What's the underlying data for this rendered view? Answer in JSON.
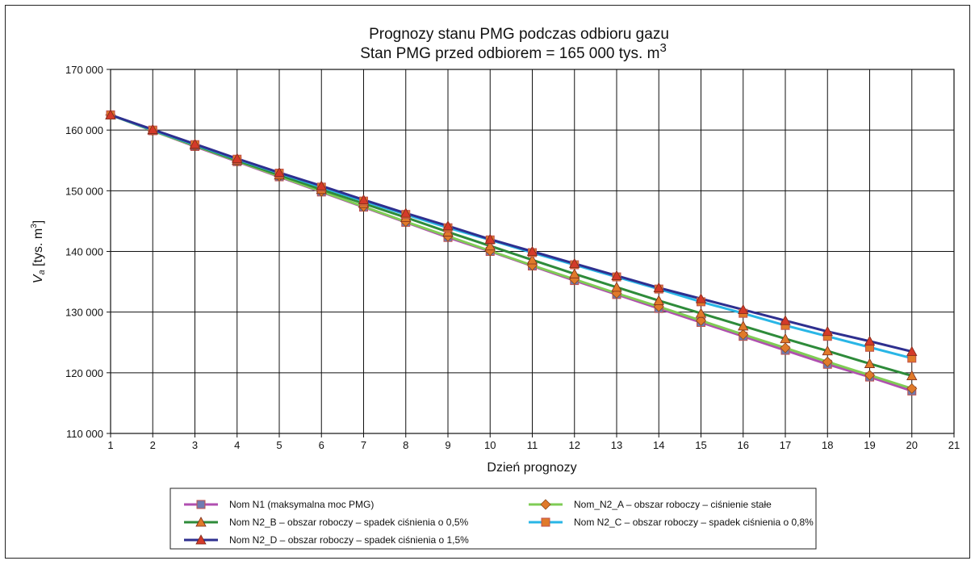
{
  "chart_data": {
    "type": "line",
    "title_line1": "Prognozy stanu PMG podczas odbioru gazu",
    "title_line2": "Stan PMG przed odbiorem = 165 000 tys. m",
    "title_sup": "3",
    "xlabel": "Dzień prognozy",
    "ylabel_main": "V",
    "ylabel_sub": "a",
    "ylabel_rest": " [tys. m",
    "ylabel_sup": "3",
    "ylabel_close": "]",
    "xlim": [
      1,
      21
    ],
    "ylim": [
      110000,
      170000
    ],
    "x_ticks": [
      "1",
      "2",
      "3",
      "4",
      "5",
      "6",
      "7",
      "8",
      "9",
      "10",
      "11",
      "12",
      "13",
      "14",
      "15",
      "16",
      "17",
      "18",
      "19",
      "20",
      "21"
    ],
    "y_ticks": [
      "110 000",
      "120 000",
      "130 000",
      "140 000",
      "150 000",
      "160 000",
      "170 000"
    ],
    "y_tick_values": [
      110000,
      120000,
      130000,
      140000,
      150000,
      160000,
      170000
    ],
    "grid": true,
    "legend_position": "bottom",
    "x": [
      1,
      2,
      3,
      4,
      5,
      6,
      7,
      8,
      9,
      10,
      11,
      12,
      13,
      14,
      15,
      16,
      17,
      18,
      19,
      20
    ],
    "series": [
      {
        "name": "Nom N1 (maksymalna moc PMG)",
        "color": "#b04fb0",
        "marker_color": "#6e7bb2",
        "marker": "square",
        "values": [
          162500,
          159900,
          157300,
          154800,
          152300,
          149800,
          147300,
          144800,
          142300,
          140000,
          137600,
          135200,
          132900,
          130600,
          128300,
          126000,
          123700,
          121400,
          119300,
          117000
        ]
      },
      {
        "name": "Nom_N2_A – obszar roboczy – ciśnienie stałe",
        "color": "#7fcc55",
        "marker_color": "#e07a2a",
        "marker": "diamond",
        "values": [
          162500,
          159900,
          157400,
          154900,
          152400,
          149900,
          147400,
          144900,
          142500,
          140100,
          137700,
          135400,
          133100,
          130900,
          128600,
          126300,
          124100,
          121800,
          119600,
          117400
        ]
      },
      {
        "name": "Nom N2_B – obszar roboczy – spadek ciśnienia o 0,5%",
        "color": "#2e8b3a",
        "marker_color": "#e07a2a",
        "marker": "triangle",
        "values": [
          162500,
          160000,
          157500,
          155000,
          152600,
          150200,
          147900,
          145600,
          143200,
          140900,
          138600,
          136300,
          134100,
          131900,
          129800,
          127700,
          125600,
          123600,
          121500,
          119500
        ]
      },
      {
        "name": "Nom N2_C – obszar roboczy – spadek ciśnienia o 0,8%",
        "color": "#29b6e6",
        "marker_color": "#e07a2a",
        "marker": "square",
        "values": [
          162500,
          160000,
          157600,
          155200,
          152900,
          150600,
          148300,
          146100,
          143900,
          141900,
          139800,
          137800,
          135800,
          133800,
          131700,
          129800,
          127800,
          126000,
          124200,
          122400
        ]
      },
      {
        "name": "Nom N2_D – obszar roboczy – spadek ciśnienia o 1,5%",
        "color": "#2e2f8f",
        "marker_color": "#d43a2a",
        "marker": "triangle",
        "values": [
          162500,
          160100,
          157700,
          155300,
          153000,
          150800,
          148500,
          146300,
          144200,
          142000,
          140000,
          138000,
          136000,
          134000,
          132200,
          130400,
          128600,
          126800,
          125200,
          123500
        ]
      }
    ]
  }
}
